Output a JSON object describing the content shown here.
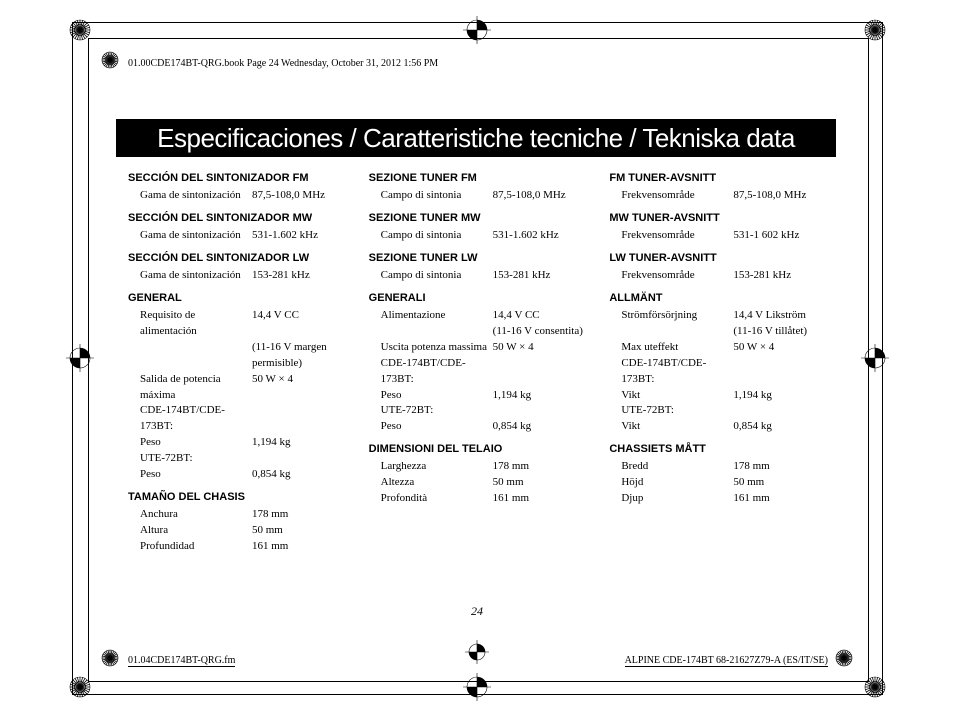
{
  "header": "01.00CDE174BT-QRG.book  Page 24  Wednesday, October 31, 2012  1:56 PM",
  "banner": "Especificaciones / Caratteristiche tecniche / Tekniska data",
  "page_number": "24",
  "footer_left": "01.04CDE174BT-QRG.fm",
  "footer_right": "ALPINE CDE-174BT 68-21627Z79-A (ES/IT/SE)",
  "cols": [
    {
      "sections": [
        {
          "head": "SECCIÓN DEL SINTONIZADOR FM",
          "rows": [
            {
              "l": "Gama de sintonización",
              "v": "87,5-108,0 MHz"
            }
          ]
        },
        {
          "head": "SECCIÓN DEL SINTONIZADOR MW",
          "rows": [
            {
              "l": "Gama de sintonización",
              "v": "531-1.602 kHz"
            }
          ]
        },
        {
          "head": "SECCIÓN DEL SINTONIZADOR LW",
          "rows": [
            {
              "l": "Gama de sintonización",
              "v": "153-281 kHz"
            }
          ]
        },
        {
          "head": "GENERAL",
          "rows": [
            {
              "l": "Requisito de alimentación",
              "v": "14,4 V CC"
            },
            {
              "l": "",
              "v": "(11-16 V margen permisible)"
            },
            {
              "l": "Salida de potencia máxima",
              "v": "50 W × 4"
            },
            {
              "l": "CDE-174BT/CDE-173BT:",
              "v": ""
            },
            {
              "l": "Peso",
              "v": "1,194 kg"
            },
            {
              "l": "UTE-72BT:",
              "v": ""
            },
            {
              "l": "Peso",
              "v": "0,854 kg"
            }
          ]
        },
        {
          "head": "TAMAÑO DEL CHASIS",
          "rows": [
            {
              "l": "Anchura",
              "v": "178 mm"
            },
            {
              "l": "Altura",
              "v": "50 mm"
            },
            {
              "l": "Profundidad",
              "v": "161 mm"
            }
          ]
        }
      ]
    },
    {
      "sections": [
        {
          "head": "SEZIONE TUNER FM",
          "rows": [
            {
              "l": "Campo di sintonia",
              "v": "87,5-108,0 MHz"
            }
          ]
        },
        {
          "head": "SEZIONE TUNER MW",
          "rows": [
            {
              "l": "Campo di sintonia",
              "v": "531-1.602 kHz"
            }
          ]
        },
        {
          "head": "SEZIONE TUNER LW",
          "rows": [
            {
              "l": "Campo di sintonia",
              "v": "153-281 kHz"
            }
          ]
        },
        {
          "head": "GENERALI",
          "rows": [
            {
              "l": "Alimentazione",
              "v": "14,4 V CC"
            },
            {
              "l": "",
              "v": "(11-16 V consentita)"
            },
            {
              "l": "Uscita potenza massima",
              "v": "50 W × 4"
            },
            {
              "l": "CDE-174BT/CDE-173BT:",
              "v": ""
            },
            {
              "l": "Peso",
              "v": "1,194 kg"
            },
            {
              "l": "UTE-72BT:",
              "v": ""
            },
            {
              "l": "Peso",
              "v": "0,854 kg"
            }
          ]
        },
        {
          "head": "DIMENSIONI DEL TELAIO",
          "rows": [
            {
              "l": "Larghezza",
              "v": "178 mm"
            },
            {
              "l": "Altezza",
              "v": "50 mm"
            },
            {
              "l": "Profondità",
              "v": "161 mm"
            }
          ]
        }
      ]
    },
    {
      "sections": [
        {
          "head": "FM TUNER-AVSNITT",
          "rows": [
            {
              "l": "Frekvensområde",
              "v": "87,5-108,0 MHz"
            }
          ]
        },
        {
          "head": "MW TUNER-AVSNITT",
          "rows": [
            {
              "l": "Frekvensområde",
              "v": "531-1 602 kHz"
            }
          ]
        },
        {
          "head": "LW TUNER-AVSNITT",
          "rows": [
            {
              "l": "Frekvensområde",
              "v": "153-281 kHz"
            }
          ]
        },
        {
          "head": "ALLMÄNT",
          "rows": [
            {
              "l": "Strömförsörjning",
              "v": "14,4 V Likström"
            },
            {
              "l": "",
              "v": "(11-16 V tillåtet)"
            },
            {
              "l": "Max uteffekt",
              "v": "50 W × 4"
            },
            {
              "l": "CDE-174BT/CDE-173BT:",
              "v": ""
            },
            {
              "l": "Vikt",
              "v": "1,194 kg"
            },
            {
              "l": "UTE-72BT:",
              "v": ""
            },
            {
              "l": "Vikt",
              "v": "0,854 kg"
            }
          ]
        },
        {
          "head": "CHASSIETS MÅTT",
          "rows": [
            {
              "l": "Bredd",
              "v": "178 mm"
            },
            {
              "l": "Höjd",
              "v": "50 mm"
            },
            {
              "l": "Djup",
              "v": "161 mm"
            }
          ]
        }
      ]
    }
  ]
}
